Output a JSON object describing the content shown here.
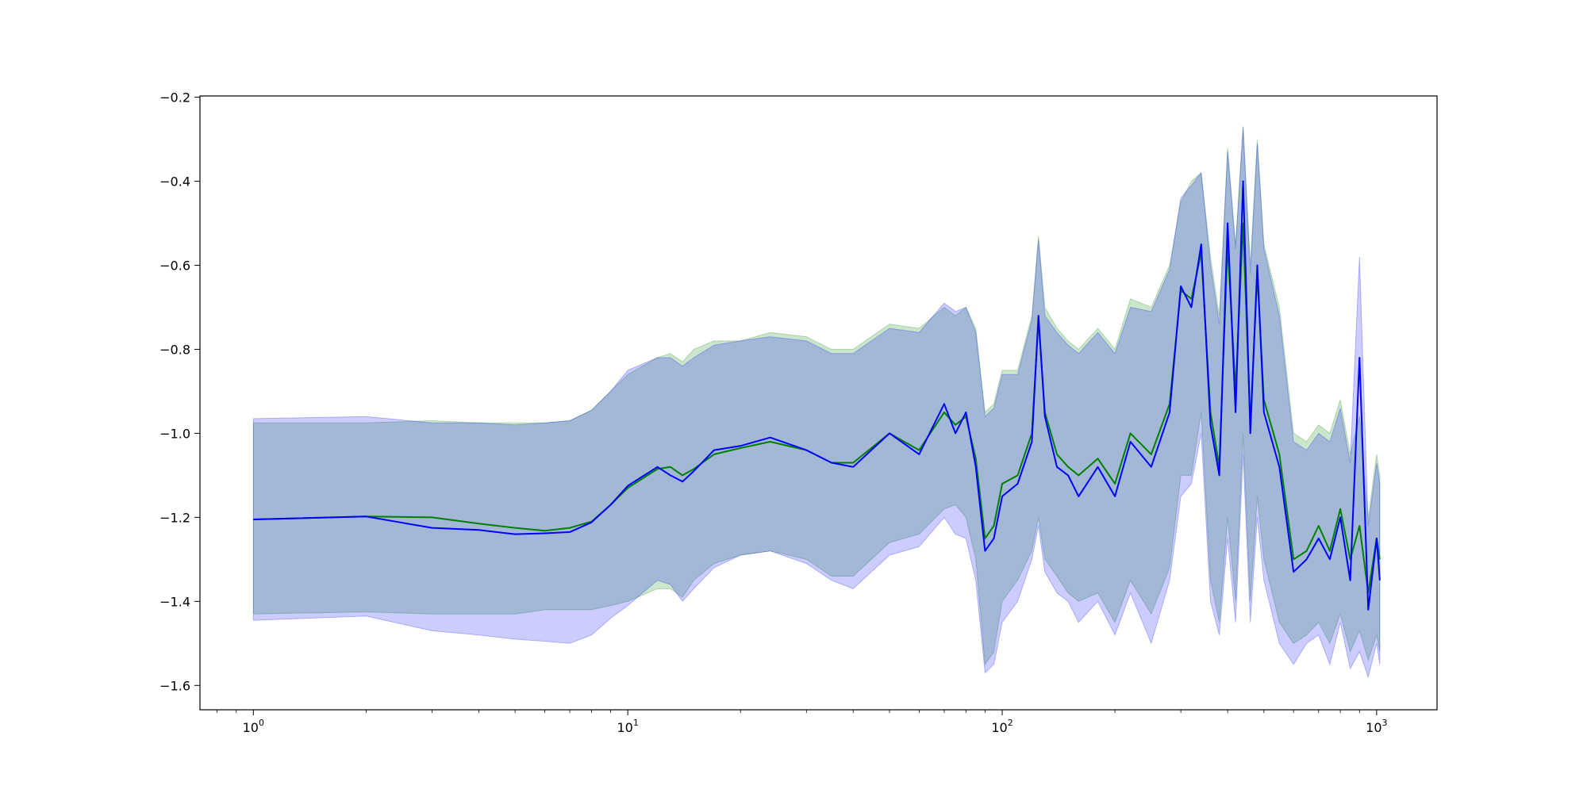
{
  "chart_data": {
    "type": "line",
    "title": "",
    "xlabel": "",
    "ylabel": "",
    "xscale": "log",
    "xlim": [
      0.72,
      1450
    ],
    "ylim": [
      -1.658,
      -0.197
    ],
    "grid": false,
    "legend": "none",
    "xticks": [
      {
        "value": 1,
        "base": "10",
        "exp": "0"
      },
      {
        "value": 10,
        "base": "10",
        "exp": "1"
      },
      {
        "value": 100,
        "base": "10",
        "exp": "2"
      },
      {
        "value": 1000,
        "base": "10",
        "exp": "3"
      }
    ],
    "yticks": [
      {
        "value": -0.2,
        "label": "−0.2"
      },
      {
        "value": -0.4,
        "label": "−0.4"
      },
      {
        "value": -0.6,
        "label": "−0.6"
      },
      {
        "value": -0.8,
        "label": "−0.8"
      },
      {
        "value": -1.0,
        "label": "−1.0"
      },
      {
        "value": -1.2,
        "label": "−1.2"
      },
      {
        "value": -1.4,
        "label": "−1.4"
      },
      {
        "value": -1.6,
        "label": "−1.6"
      }
    ],
    "series": [
      {
        "color": "#008000",
        "band_color": "#008000",
        "x": [
          1,
          2,
          3,
          4,
          5,
          6,
          7,
          8,
          9,
          10,
          12,
          13,
          14,
          15,
          17,
          20,
          24,
          30,
          35,
          40,
          50,
          60,
          70,
          75,
          80,
          85,
          90,
          95,
          100,
          110,
          120,
          125,
          130,
          140,
          150,
          160,
          180,
          200,
          220,
          250,
          280,
          300,
          320,
          340,
          360,
          380,
          400,
          420,
          440,
          460,
          480,
          500,
          550,
          600,
          650,
          700,
          750,
          800,
          850,
          900,
          950,
          1000,
          1020
        ],
        "y": [
          -1.205,
          -1.198,
          -1.2,
          -1.215,
          -1.225,
          -1.232,
          -1.225,
          -1.21,
          -1.17,
          -1.13,
          -1.085,
          -1.08,
          -1.1,
          -1.085,
          -1.05,
          -1.035,
          -1.02,
          -1.04,
          -1.07,
          -1.07,
          -1.0,
          -1.04,
          -0.95,
          -0.98,
          -0.96,
          -1.06,
          -1.25,
          -1.22,
          -1.12,
          -1.1,
          -1.0,
          -0.73,
          -0.95,
          -1.05,
          -1.08,
          -1.1,
          -1.06,
          -1.12,
          -1.0,
          -1.05,
          -0.93,
          -0.66,
          -0.68,
          -0.57,
          -0.95,
          -1.08,
          -0.55,
          -0.9,
          -0.5,
          -0.98,
          -0.62,
          -0.92,
          -1.05,
          -1.3,
          -1.28,
          -1.22,
          -1.28,
          -1.18,
          -1.3,
          -1.22,
          -1.38,
          -1.25,
          -1.3
        ],
        "lower": [
          -1.43,
          -1.425,
          -1.43,
          -1.43,
          -1.43,
          -1.42,
          -1.42,
          -1.42,
          -1.41,
          -1.4,
          -1.37,
          -1.37,
          -1.39,
          -1.35,
          -1.31,
          -1.29,
          -1.28,
          -1.3,
          -1.34,
          -1.34,
          -1.26,
          -1.24,
          -1.18,
          -1.17,
          -1.2,
          -1.3,
          -1.55,
          -1.52,
          -1.4,
          -1.35,
          -1.28,
          -1.2,
          -1.3,
          -1.34,
          -1.38,
          -1.4,
          -1.38,
          -1.45,
          -1.35,
          -1.43,
          -1.32,
          -1.1,
          -1.1,
          -0.95,
          -1.35,
          -1.45,
          -1.2,
          -1.4,
          -1.0,
          -1.4,
          -1.15,
          -1.3,
          -1.45,
          -1.5,
          -1.48,
          -1.45,
          -1.5,
          -1.43,
          -1.52,
          -1.47,
          -1.54,
          -1.48,
          -1.52
        ],
        "upper": [
          -0.975,
          -0.975,
          -0.97,
          -0.975,
          -0.975,
          -0.975,
          -0.97,
          -0.945,
          -0.9,
          -0.86,
          -0.82,
          -0.81,
          -0.83,
          -0.8,
          -0.78,
          -0.78,
          -0.76,
          -0.77,
          -0.8,
          -0.8,
          -0.74,
          -0.75,
          -0.7,
          -0.72,
          -0.7,
          -0.75,
          -0.95,
          -0.93,
          -0.85,
          -0.85,
          -0.72,
          -0.53,
          -0.7,
          -0.75,
          -0.78,
          -0.8,
          -0.75,
          -0.8,
          -0.68,
          -0.7,
          -0.6,
          -0.45,
          -0.4,
          -0.38,
          -0.58,
          -0.72,
          -0.32,
          -0.55,
          -0.27,
          -0.6,
          -0.3,
          -0.55,
          -0.7,
          -1.0,
          -1.02,
          -0.98,
          -1.0,
          -0.92,
          -1.05,
          -0.96,
          -1.2,
          -1.05,
          -1.1
        ]
      },
      {
        "color": "#0000ff",
        "band_color": "#0000ff",
        "x": [
          1,
          2,
          3,
          4,
          5,
          6,
          7,
          8,
          9,
          10,
          12,
          13,
          14,
          15,
          17,
          20,
          24,
          30,
          35,
          40,
          50,
          60,
          70,
          75,
          80,
          85,
          90,
          95,
          100,
          110,
          120,
          125,
          130,
          140,
          150,
          160,
          180,
          200,
          220,
          250,
          280,
          300,
          320,
          340,
          360,
          380,
          400,
          420,
          440,
          460,
          480,
          500,
          550,
          600,
          650,
          700,
          750,
          800,
          850,
          900,
          950,
          1000,
          1020
        ],
        "y": [
          -1.205,
          -1.198,
          -1.225,
          -1.23,
          -1.24,
          -1.238,
          -1.235,
          -1.212,
          -1.17,
          -1.125,
          -1.08,
          -1.1,
          -1.115,
          -1.09,
          -1.04,
          -1.03,
          -1.01,
          -1.04,
          -1.07,
          -1.08,
          -1.0,
          -1.05,
          -0.93,
          -1.0,
          -0.95,
          -1.08,
          -1.28,
          -1.25,
          -1.15,
          -1.12,
          -1.02,
          -0.72,
          -0.96,
          -1.08,
          -1.1,
          -1.15,
          -1.08,
          -1.15,
          -1.02,
          -1.08,
          -0.95,
          -0.65,
          -0.7,
          -0.55,
          -0.98,
          -1.1,
          -0.5,
          -0.95,
          -0.4,
          -1.0,
          -0.6,
          -0.95,
          -1.08,
          -1.33,
          -1.3,
          -1.25,
          -1.3,
          -1.2,
          -1.35,
          -0.82,
          -1.42,
          -1.25,
          -1.35
        ],
        "lower": [
          -1.445,
          -1.435,
          -1.47,
          -1.48,
          -1.49,
          -1.495,
          -1.5,
          -1.48,
          -1.44,
          -1.41,
          -1.35,
          -1.36,
          -1.4,
          -1.37,
          -1.32,
          -1.29,
          -1.28,
          -1.31,
          -1.35,
          -1.37,
          -1.29,
          -1.27,
          -1.2,
          -1.24,
          -1.25,
          -1.35,
          -1.57,
          -1.55,
          -1.45,
          -1.4,
          -1.3,
          -1.22,
          -1.33,
          -1.38,
          -1.4,
          -1.45,
          -1.4,
          -1.48,
          -1.38,
          -1.5,
          -1.35,
          -1.15,
          -1.12,
          -1.0,
          -1.4,
          -1.48,
          -1.25,
          -1.45,
          -1.05,
          -1.45,
          -1.2,
          -1.35,
          -1.5,
          -1.55,
          -1.5,
          -1.48,
          -1.55,
          -1.45,
          -1.56,
          -1.52,
          -1.58,
          -1.5,
          -1.55
        ],
        "upper": [
          -0.965,
          -0.96,
          -0.975,
          -0.975,
          -0.98,
          -0.975,
          -0.97,
          -0.945,
          -0.9,
          -0.85,
          -0.82,
          -0.82,
          -0.84,
          -0.82,
          -0.79,
          -0.78,
          -0.77,
          -0.78,
          -0.81,
          -0.81,
          -0.75,
          -0.76,
          -0.69,
          -0.71,
          -0.7,
          -0.76,
          -0.96,
          -0.94,
          -0.86,
          -0.86,
          -0.73,
          -0.54,
          -0.72,
          -0.76,
          -0.79,
          -0.81,
          -0.76,
          -0.81,
          -0.7,
          -0.71,
          -0.61,
          -0.44,
          -0.41,
          -0.38,
          -0.6,
          -0.74,
          -0.33,
          -0.56,
          -0.27,
          -0.62,
          -0.31,
          -0.56,
          -0.72,
          -1.02,
          -1.04,
          -1.0,
          -1.02,
          -0.94,
          -1.07,
          -0.58,
          -1.22,
          -1.07,
          -1.12
        ]
      }
    ]
  }
}
